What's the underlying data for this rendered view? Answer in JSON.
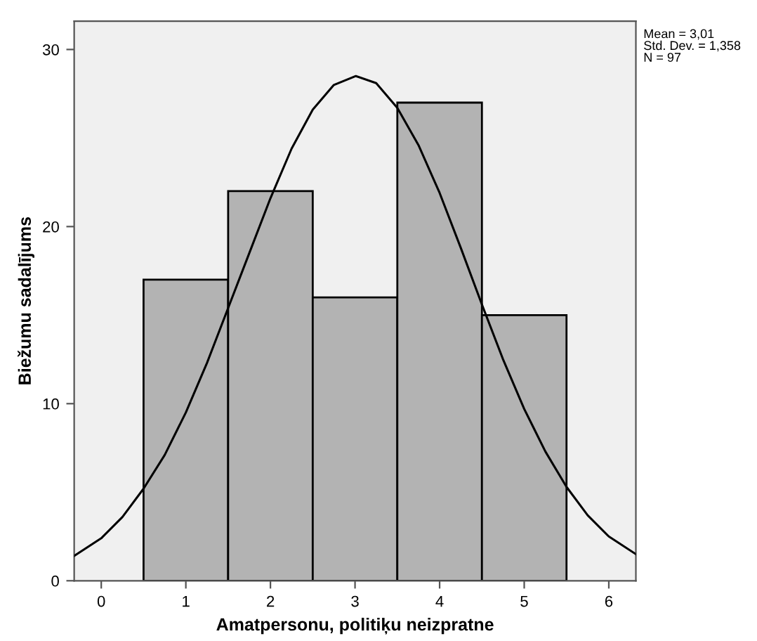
{
  "chart_data": {
    "type": "histogram",
    "xlabel": "Amatpersonu, politiķu neizpratne",
    "ylabel": "Biežumu sadalījums",
    "bins": [
      0.5,
      1.5,
      2.5,
      3.5,
      4.5,
      5.5
    ],
    "values": [
      17,
      22,
      16,
      27,
      15
    ],
    "color": "#b3b3b3",
    "series": [
      {
        "type": "line",
        "color": "#000000",
        "x": [
          -0.32,
          0,
          0.25,
          0.5,
          0.75,
          1,
          1.25,
          1.5,
          1.75,
          2,
          2.25,
          2.5,
          2.75,
          3.01,
          3.25,
          3.5,
          3.75,
          4,
          4.25,
          4.5,
          4.75,
          5,
          5.25,
          5.5,
          5.75,
          6,
          6.32
        ],
        "values": [
          1.4,
          2.4,
          3.6,
          5.2,
          7.1,
          9.5,
          12.3,
          15.4,
          18.5,
          21.6,
          24.4,
          26.6,
          28.0,
          28.5,
          28.1,
          26.7,
          24.6,
          21.9,
          18.8,
          15.6,
          12.5,
          9.7,
          7.3,
          5.3,
          3.7,
          2.5,
          1.5
        ]
      }
    ],
    "xlim": [
      -0.32,
      6.32
    ],
    "ylim": [
      0,
      31.6
    ],
    "xticks": [
      0,
      1,
      2,
      3,
      4,
      5,
      6
    ],
    "yticks": [
      0,
      10,
      20,
      30
    ],
    "grid": false,
    "legend": false,
    "annotations": [
      "Mean = 3,01",
      "Std. Dev. = 1,358",
      "N = 97"
    ]
  }
}
